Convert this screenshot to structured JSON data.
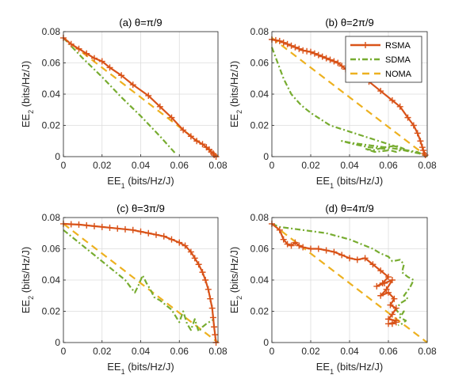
{
  "colors": {
    "RSMA": "#D95319",
    "SDMA": "#77AC30",
    "NOMA": "#EDB120",
    "axis": "#262626",
    "grid": "#dcdcdc"
  },
  "chart_data": [
    {
      "type": "line",
      "title": "(a) θ=π/9",
      "xlabel": "EE1 (bits/Hz/J)",
      "ylabel": "EE2 (bits/Hz/J)",
      "xlim": [
        0,
        0.08
      ],
      "ylim": [
        0,
        0.08
      ],
      "xticks": [
        "0",
        "0.02",
        "0.04",
        "0.06",
        "0.08"
      ],
      "yticks": [
        "0",
        "0.02",
        "0.04",
        "0.06",
        "0.08"
      ],
      "grid": true,
      "series": [
        {
          "name": "RSMA",
          "style": "solid-plus",
          "x": [
            0,
            0.004,
            0.008,
            0.012,
            0.016,
            0.02,
            0.024,
            0.03,
            0.036,
            0.044,
            0.05,
            0.056,
            0.062,
            0.066,
            0.069,
            0.072,
            0.074,
            0.0755,
            0.0765,
            0.0775,
            0.078,
            0.079
          ],
          "y": [
            0.076,
            0.072,
            0.069,
            0.066,
            0.063,
            0.061,
            0.057,
            0.052,
            0.046,
            0.039,
            0.032,
            0.025,
            0.017,
            0.013,
            0.01,
            0.008,
            0.006,
            0.0045,
            0.003,
            0.002,
            0.001,
            0.0
          ]
        },
        {
          "name": "SDMA",
          "style": "dashdot",
          "x": [
            0,
            0.01,
            0.02,
            0.03,
            0.04,
            0.05,
            0.058
          ],
          "y": [
            0.076,
            0.063,
            0.051,
            0.038,
            0.026,
            0.013,
            0.002
          ]
        },
        {
          "name": "NOMA",
          "style": "dashed",
          "x": [
            0,
            0.08
          ],
          "y": [
            0.076,
            0
          ]
        }
      ]
    },
    {
      "type": "line",
      "title": "(b) θ=2π/9",
      "xlabel": "EE1 (bits/Hz/J)",
      "ylabel": "EE2 (bits/Hz/J)",
      "xlim": [
        0,
        0.08
      ],
      "ylim": [
        0,
        0.08
      ],
      "xticks": [
        "0",
        "0.02",
        "0.04",
        "0.06",
        "0.08"
      ],
      "yticks": [
        "0",
        "0.02",
        "0.04",
        "0.06",
        "0.08"
      ],
      "grid": true,
      "series": [
        {
          "name": "RSMA",
          "style": "solid-plus",
          "x": [
            0,
            0.002,
            0.004,
            0.006,
            0.008,
            0.01,
            0.012,
            0.014,
            0.016,
            0.018,
            0.02,
            0.022,
            0.024,
            0.026,
            0.028,
            0.03,
            0.032,
            0.034,
            0.036,
            0.038,
            0.04,
            0.045,
            0.05,
            0.056,
            0.062,
            0.066,
            0.07,
            0.073,
            0.075,
            0.0765,
            0.0775,
            0.078,
            0.0785,
            0.079
          ],
          "y": [
            0.075,
            0.0745,
            0.074,
            0.073,
            0.072,
            0.071,
            0.07,
            0.069,
            0.068,
            0.0675,
            0.067,
            0.066,
            0.065,
            0.064,
            0.063,
            0.062,
            0.061,
            0.06,
            0.058,
            0.056,
            0.054,
            0.051,
            0.048,
            0.042,
            0.036,
            0.032,
            0.025,
            0.02,
            0.015,
            0.01,
            0.006,
            0.004,
            0.002,
            0.001
          ]
        },
        {
          "name": "SDMA",
          "style": "dashdot",
          "x": [
            0,
            0.003,
            0.006,
            0.01,
            0.015,
            0.02,
            0.025,
            0.03,
            0.04,
            0.05,
            0.06,
            0.065,
            0.068,
            0.072,
            0.076,
            0.078,
            0.075,
            0.07,
            0.064,
            0.058,
            0.052,
            0.046,
            0.04,
            0.036,
            0.042,
            0.05,
            0.058,
            0.064,
            0.068,
            0.064,
            0.058,
            0.052,
            0.048,
            0.053,
            0.06
          ],
          "y": [
            0.07,
            0.06,
            0.05,
            0.04,
            0.033,
            0.028,
            0.024,
            0.02,
            0.016,
            0.012,
            0.008,
            0.006,
            0.004,
            0.003,
            0.002,
            0.001,
            0.003,
            0.004,
            0.005,
            0.006,
            0.007,
            0.008,
            0.009,
            0.01,
            0.008,
            0.006,
            0.005,
            0.003,
            0.005,
            0.007,
            0.006,
            0.004,
            0.005,
            0.003,
            0.004
          ]
        },
        {
          "name": "NOMA",
          "style": "dashed",
          "x": [
            0,
            0.08
          ],
          "y": [
            0.076,
            0
          ]
        }
      ]
    },
    {
      "type": "line",
      "title": "(c) θ=3π/9",
      "xlabel": "EE1 (bits/Hz/J)",
      "ylabel": "EE2 (bits/Hz/J)",
      "xlim": [
        0,
        0.08
      ],
      "ylim": [
        0,
        0.08
      ],
      "xticks": [
        "0",
        "0.02",
        "0.04",
        "0.06",
        "0.08"
      ],
      "yticks": [
        "0",
        "0.02",
        "0.04",
        "0.06",
        "0.08"
      ],
      "grid": true,
      "series": [
        {
          "name": "RSMA",
          "style": "solid-plus",
          "x": [
            0,
            0.004,
            0.008,
            0.012,
            0.016,
            0.02,
            0.024,
            0.028,
            0.032,
            0.036,
            0.04,
            0.044,
            0.048,
            0.052,
            0.056,
            0.06,
            0.063,
            0.066,
            0.068,
            0.07,
            0.072,
            0.0735,
            0.075,
            0.076,
            0.077,
            0.0775,
            0.078,
            0.0785,
            0.079
          ],
          "y": [
            0.076,
            0.0757,
            0.0755,
            0.075,
            0.0745,
            0.074,
            0.0735,
            0.073,
            0.0725,
            0.072,
            0.071,
            0.07,
            0.069,
            0.068,
            0.066,
            0.064,
            0.062,
            0.058,
            0.054,
            0.05,
            0.045,
            0.04,
            0.034,
            0.028,
            0.022,
            0.016,
            0.01,
            0.005,
            0.0
          ]
        },
        {
          "name": "SDMA",
          "style": "dashdot",
          "x": [
            0,
            0.004,
            0.008,
            0.012,
            0.016,
            0.02,
            0.024,
            0.028,
            0.032,
            0.035,
            0.037,
            0.039,
            0.041,
            0.043,
            0.045,
            0.047,
            0.05,
            0.053,
            0.056,
            0.058,
            0.06,
            0.062,
            0.064,
            0.066,
            0.068,
            0.07,
            0.072,
            0.074,
            0.078
          ],
          "y": [
            0.072,
            0.068,
            0.064,
            0.06,
            0.056,
            0.052,
            0.048,
            0.044,
            0.04,
            0.035,
            0.032,
            0.037,
            0.043,
            0.038,
            0.034,
            0.029,
            0.027,
            0.024,
            0.021,
            0.017,
            0.013,
            0.02,
            0.012,
            0.008,
            0.015,
            0.007,
            0.01,
            0.012,
            0.015
          ]
        },
        {
          "name": "NOMA",
          "style": "dashed",
          "x": [
            0,
            0.08
          ],
          "y": [
            0.076,
            0
          ]
        }
      ]
    },
    {
      "type": "line",
      "title": "(d) θ=4π/9",
      "xlabel": "EE1 (bits/Hz/J)",
      "ylabel": "EE2 (bits/Hz/J)",
      "xlim": [
        0,
        0.08
      ],
      "ylim": [
        0,
        0.08
      ],
      "xticks": [
        "0",
        "0.02",
        "0.04",
        "0.06",
        "0.08"
      ],
      "yticks": [
        "0",
        "0.02",
        "0.04",
        "0.06",
        "0.08"
      ],
      "grid": true,
      "series": [
        {
          "name": "RSMA",
          "style": "solid-plus",
          "x": [
            0,
            0.004,
            0.006,
            0.008,
            0.01,
            0.012,
            0.014,
            0.016,
            0.02,
            0.024,
            0.028,
            0.032,
            0.036,
            0.04,
            0.044,
            0.048,
            0.052,
            0.056,
            0.06,
            0.057,
            0.054,
            0.058,
            0.062,
            0.059,
            0.056,
            0.06,
            0.063,
            0.061,
            0.064,
            0.062,
            0.06,
            0.064,
            0.062,
            0.06,
            0.064
          ],
          "y": [
            0.076,
            0.072,
            0.066,
            0.063,
            0.062,
            0.064,
            0.062,
            0.061,
            0.06,
            0.06,
            0.059,
            0.058,
            0.056,
            0.054,
            0.053,
            0.054,
            0.05,
            0.046,
            0.042,
            0.038,
            0.036,
            0.038,
            0.04,
            0.034,
            0.03,
            0.032,
            0.028,
            0.024,
            0.022,
            0.018,
            0.015,
            0.014,
            0.012,
            0.012,
            0.013
          ]
        },
        {
          "name": "SDMA",
          "style": "dashdot",
          "x": [
            0,
            0.004,
            0.01,
            0.016,
            0.022,
            0.028,
            0.034,
            0.04,
            0.046,
            0.052,
            0.056,
            0.06,
            0.062,
            0.066,
            0.068,
            0.067,
            0.07,
            0.073,
            0.071,
            0.068,
            0.07,
            0.066,
            0.064,
            0.066,
            0.068,
            0.066,
            0.069,
            0.067,
            0.065
          ],
          "y": [
            0.076,
            0.074,
            0.073,
            0.072,
            0.071,
            0.07,
            0.068,
            0.066,
            0.063,
            0.06,
            0.057,
            0.055,
            0.052,
            0.053,
            0.05,
            0.045,
            0.042,
            0.04,
            0.035,
            0.03,
            0.028,
            0.025,
            0.021,
            0.018,
            0.02,
            0.016,
            0.014,
            0.012,
            0.011
          ]
        },
        {
          "name": "NOMA",
          "style": "dashed",
          "x": [
            0,
            0.08
          ],
          "y": [
            0.076,
            0
          ]
        }
      ]
    }
  ],
  "legend": {
    "entries": [
      "RSMA",
      "SDMA",
      "NOMA"
    ],
    "panel": 2,
    "placement": "top-right"
  }
}
